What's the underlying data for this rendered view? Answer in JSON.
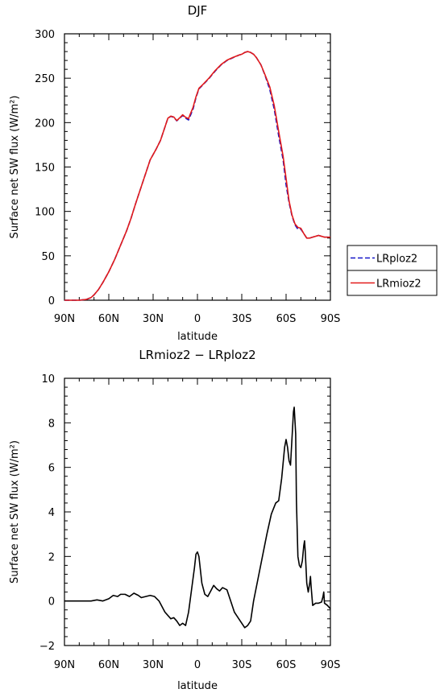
{
  "chart_data": [
    {
      "type": "line",
      "title": "DJF",
      "xlabel": "latitude",
      "ylabel": "Surface net SW flux (W/m²)",
      "xlim": [
        90,
        -90
      ],
      "ylim": [
        0,
        300
      ],
      "x_ticks": [
        90,
        60,
        30,
        0,
        -30,
        -60,
        -90
      ],
      "x_tick_labels": [
        "90N",
        "60N",
        "30N",
        "0",
        "30S",
        "60S",
        "90S"
      ],
      "y_ticks": [
        0,
        50,
        100,
        150,
        200,
        250,
        300
      ],
      "y_tick_labels": [
        "0",
        "50",
        "100",
        "150",
        "200",
        "250",
        "300"
      ],
      "grid": false,
      "legend_position": "right",
      "series": [
        {
          "name": "LRploz2",
          "color": "#1515c8",
          "dash": "dashed",
          "points": [
            [
              90,
              0
            ],
            [
              80,
              0
            ],
            [
              75,
              1
            ],
            [
              72,
              3
            ],
            [
              70,
              6
            ],
            [
              67,
              12
            ],
            [
              64,
              20
            ],
            [
              60,
              32
            ],
            [
              56,
              46
            ],
            [
              52,
              62
            ],
            [
              48,
              78
            ],
            [
              45,
              92
            ],
            [
              42,
              108
            ],
            [
              38,
              128
            ],
            [
              35,
              143
            ],
            [
              32,
              158
            ],
            [
              28,
              170
            ],
            [
              25,
              180
            ],
            [
              22,
              195
            ],
            [
              20,
              205
            ],
            [
              18,
              207
            ],
            [
              16,
              206
            ],
            [
              15,
              204
            ],
            [
              14,
              202
            ],
            [
              12,
              205
            ],
            [
              10,
              208
            ],
            [
              8,
              205
            ],
            [
              6,
              203
            ],
            [
              5,
              207
            ],
            [
              3,
              215
            ],
            [
              1,
              228
            ],
            [
              -1,
              238
            ],
            [
              -4,
              243
            ],
            [
              -8,
              250
            ],
            [
              -12,
              258
            ],
            [
              -16,
              265
            ],
            [
              -20,
              270
            ],
            [
              -24,
              273
            ],
            [
              -28,
              276
            ],
            [
              -30,
              277
            ],
            [
              -32,
              279
            ],
            [
              -34,
              280
            ],
            [
              -36,
              279
            ],
            [
              -38,
              277
            ],
            [
              -40,
              273
            ],
            [
              -43,
              265
            ],
            [
              -46,
              252
            ],
            [
              -49,
              237
            ],
            [
              -52,
              215
            ],
            [
              -55,
              185
            ],
            [
              -58,
              158
            ],
            [
              -60,
              130
            ],
            [
              -62,
              110
            ],
            [
              -64,
              95
            ],
            [
              -66,
              85
            ],
            [
              -68,
              80
            ],
            [
              -70,
              80
            ],
            [
              -72,
              75
            ],
            [
              -74,
              70
            ],
            [
              -76,
              70
            ],
            [
              -78,
              71
            ],
            [
              -80,
              72
            ],
            [
              -82,
              73
            ],
            [
              -84,
              72
            ],
            [
              -86,
              71
            ],
            [
              -88,
              71
            ],
            [
              -90,
              71
            ]
          ]
        },
        {
          "name": "LRmioz2",
          "color": "#e21b1b",
          "dash": "solid",
          "points": [
            [
              90,
              0
            ],
            [
              80,
              0
            ],
            [
              75,
              1
            ],
            [
              72,
              3
            ],
            [
              70,
              6
            ],
            [
              67,
              12
            ],
            [
              64,
              20
            ],
            [
              60,
              32
            ],
            [
              56,
              46
            ],
            [
              52,
              62
            ],
            [
              48,
              78
            ],
            [
              45,
              92
            ],
            [
              42,
              108
            ],
            [
              38,
              128
            ],
            [
              35,
              143
            ],
            [
              32,
              158
            ],
            [
              28,
              170
            ],
            [
              25,
              180
            ],
            [
              22,
              195
            ],
            [
              20,
              205
            ],
            [
              18,
              207.3
            ],
            [
              16,
              206.3
            ],
            [
              15,
              204.3
            ],
            [
              14,
              202.3
            ],
            [
              12,
              205.4
            ],
            [
              10,
              208.8
            ],
            [
              8,
              206
            ],
            [
              6,
              204.5
            ],
            [
              5,
              209
            ],
            [
              3,
              217
            ],
            [
              1,
              229
            ],
            [
              -1,
              238.6
            ],
            [
              -4,
              243.4
            ],
            [
              -8,
              250.5
            ],
            [
              -12,
              258.6
            ],
            [
              -16,
              265.4
            ],
            [
              -20,
              270.3
            ],
            [
              -24,
              273.4
            ],
            [
              -28,
              276
            ],
            [
              -30,
              277
            ],
            [
              -32,
              279
            ],
            [
              -34,
              280
            ],
            [
              -36,
              279
            ],
            [
              -38,
              277
            ],
            [
              -40,
              273
            ],
            [
              -43,
              265
            ],
            [
              -46,
              252.8
            ],
            [
              -49,
              240
            ],
            [
              -52,
              219
            ],
            [
              -55,
              190
            ],
            [
              -58,
              162
            ],
            [
              -60,
              137
            ],
            [
              -62,
              112
            ],
            [
              -64,
              96
            ],
            [
              -66,
              86
            ],
            [
              -68,
              82
            ],
            [
              -70,
              81
            ],
            [
              -72,
              75
            ],
            [
              -74,
              70
            ],
            [
              -76,
              70
            ],
            [
              -78,
              71
            ],
            [
              -80,
              72
            ],
            [
              -82,
              73
            ],
            [
              -84,
              72
            ],
            [
              -86,
              71
            ],
            [
              -88,
              71
            ],
            [
              -90,
              71
            ]
          ]
        }
      ]
    },
    {
      "type": "line",
      "title": "LRmioz2 − LRploz2",
      "xlabel": "latitude",
      "ylabel": "Surface net SW flux (W/m²)",
      "xlim": [
        90,
        -90
      ],
      "ylim": [
        -2,
        10
      ],
      "x_ticks": [
        90,
        60,
        30,
        0,
        -30,
        -60,
        -90
      ],
      "x_tick_labels": [
        "90N",
        "60N",
        "30N",
        "0",
        "30S",
        "60S",
        "90S"
      ],
      "y_ticks": [
        -2,
        0,
        2,
        4,
        6,
        8,
        10
      ],
      "y_tick_labels": [
        "−2",
        "0",
        "2",
        "4",
        "6",
        "8",
        "10"
      ],
      "grid": false,
      "series": [
        {
          "color": "#000000",
          "dash": "solid",
          "points": [
            [
              90,
              0
            ],
            [
              80,
              0
            ],
            [
              72,
              0
            ],
            [
              68,
              0.05
            ],
            [
              64,
              0
            ],
            [
              60,
              0.1
            ],
            [
              57,
              0.25
            ],
            [
              54,
              0.2
            ],
            [
              52,
              0.3
            ],
            [
              49,
              0.3
            ],
            [
              46,
              0.2
            ],
            [
              43,
              0.35
            ],
            [
              40,
              0.25
            ],
            [
              38,
              0.15
            ],
            [
              35,
              0.2
            ],
            [
              32,
              0.25
            ],
            [
              29,
              0.2
            ],
            [
              26,
              0
            ],
            [
              22,
              -0.5
            ],
            [
              18,
              -0.8
            ],
            [
              16,
              -0.75
            ],
            [
              14,
              -0.9
            ],
            [
              12,
              -1.1
            ],
            [
              10,
              -1.0
            ],
            [
              8,
              -1.1
            ],
            [
              6,
              -0.5
            ],
            [
              4,
              0.5
            ],
            [
              2,
              1.5
            ],
            [
              1,
              2.1
            ],
            [
              0,
              2.2
            ],
            [
              -1,
              2.0
            ],
            [
              -3,
              0.8
            ],
            [
              -5,
              0.3
            ],
            [
              -7,
              0.2
            ],
            [
              -9,
              0.45
            ],
            [
              -11,
              0.7
            ],
            [
              -13,
              0.55
            ],
            [
              -15,
              0.45
            ],
            [
              -17,
              0.6
            ],
            [
              -20,
              0.5
            ],
            [
              -22,
              0.1
            ],
            [
              -25,
              -0.5
            ],
            [
              -28,
              -0.8
            ],
            [
              -30,
              -1.0
            ],
            [
              -32,
              -1.2
            ],
            [
              -34,
              -1.1
            ],
            [
              -36,
              -0.9
            ],
            [
              -38,
              0
            ],
            [
              -41,
              1.0
            ],
            [
              -44,
              2.0
            ],
            [
              -47,
              3.0
            ],
            [
              -50,
              3.9
            ],
            [
              -53,
              4.4
            ],
            [
              -55,
              4.5
            ],
            [
              -57,
              5.5
            ],
            [
              -59,
              6.9
            ],
            [
              -60,
              7.25
            ],
            [
              -61,
              6.9
            ],
            [
              -62,
              6.3
            ],
            [
              -63,
              6.1
            ],
            [
              -64,
              7.3
            ],
            [
              -65,
              8.5
            ],
            [
              -65.5,
              8.7
            ],
            [
              -66.5,
              7.5
            ],
            [
              -67,
              4.5
            ],
            [
              -68,
              2.0
            ],
            [
              -69,
              1.6
            ],
            [
              -70,
              1.5
            ],
            [
              -71,
              1.8
            ],
            [
              -72,
              2.5
            ],
            [
              -72.5,
              2.7
            ],
            [
              -73,
              2.2
            ],
            [
              -74,
              0.8
            ],
            [
              -75,
              0.4
            ],
            [
              -76,
              0.8
            ],
            [
              -76.5,
              1.1
            ],
            [
              -77,
              0.6
            ],
            [
              -78,
              -0.2
            ],
            [
              -80,
              -0.1
            ],
            [
              -82,
              -0.1
            ],
            [
              -84,
              -0.05
            ],
            [
              -85,
              0.2
            ],
            [
              -85.5,
              0.4
            ],
            [
              -86,
              -0.1
            ],
            [
              -88,
              -0.2
            ],
            [
              -90,
              -0.35
            ]
          ]
        }
      ]
    }
  ]
}
